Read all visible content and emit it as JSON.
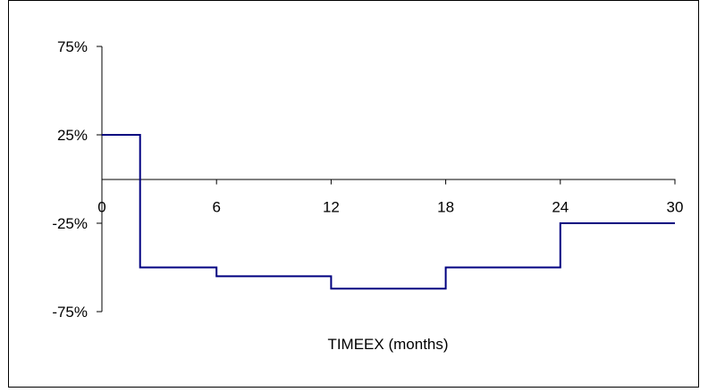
{
  "chart_data": {
    "type": "line",
    "step": true,
    "title": "",
    "xlabel": "TIMEEX (months)",
    "ylabel": "",
    "xlim": [
      0,
      30
    ],
    "ylim": [
      -75,
      75
    ],
    "x_ticks": [
      0,
      6,
      12,
      18,
      24,
      30
    ],
    "x_tick_labels": [
      "0",
      "6",
      "12",
      "18",
      "24",
      "30"
    ],
    "y_ticks": [
      75,
      25,
      -25,
      -75
    ],
    "y_tick_labels": [
      "75%",
      "25%",
      "-25%",
      "-75%"
    ],
    "grid": false,
    "legend": "none",
    "series": [
      {
        "color": "#000080",
        "x": [
          0,
          2,
          2,
          6,
          6,
          12,
          12,
          18,
          18,
          24,
          24,
          30
        ],
        "y": [
          25,
          25,
          -50,
          -50,
          -55,
          -55,
          -62,
          -62,
          -50,
          -50,
          -25,
          -25
        ]
      }
    ]
  }
}
